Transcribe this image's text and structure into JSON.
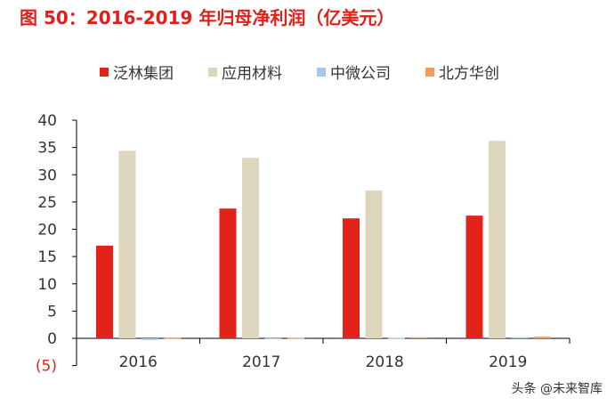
{
  "title": "图 50：2016-2019 年归母净利润（亿美元）",
  "watermark": "头条 @未来智库",
  "chart_data": {
    "type": "bar",
    "title": "图 50：2016-2019 年归母净利润（亿美元）",
    "categories": [
      "2016",
      "2017",
      "2018",
      "2019"
    ],
    "series": [
      {
        "name": "泛林集团",
        "color": "#e2231a",
        "values": [
          17.0,
          23.8,
          22.0,
          22.5
        ]
      },
      {
        "name": "应用材料",
        "color": "#ded5bd",
        "values": [
          34.4,
          33.1,
          27.1,
          36.2
        ]
      },
      {
        "name": "中微公司",
        "color": "#a9c6ef",
        "values": [
          -0.3,
          0.03,
          0.1,
          0.2
        ]
      },
      {
        "name": "北方华创",
        "color": "#f59a5b",
        "values": [
          0.05,
          0.1,
          0.2,
          0.3
        ]
      }
    ],
    "ylim": [
      -5,
      40
    ],
    "yticks": [
      "(5)",
      "0",
      "5",
      "10",
      "15",
      "20",
      "25",
      "30",
      "35",
      "40"
    ],
    "ytick_values": [
      -5,
      0,
      5,
      10,
      15,
      20,
      25,
      30,
      35,
      40
    ],
    "negative_tick_color": "#e2231a",
    "legend_position": "top",
    "grid": false
  }
}
